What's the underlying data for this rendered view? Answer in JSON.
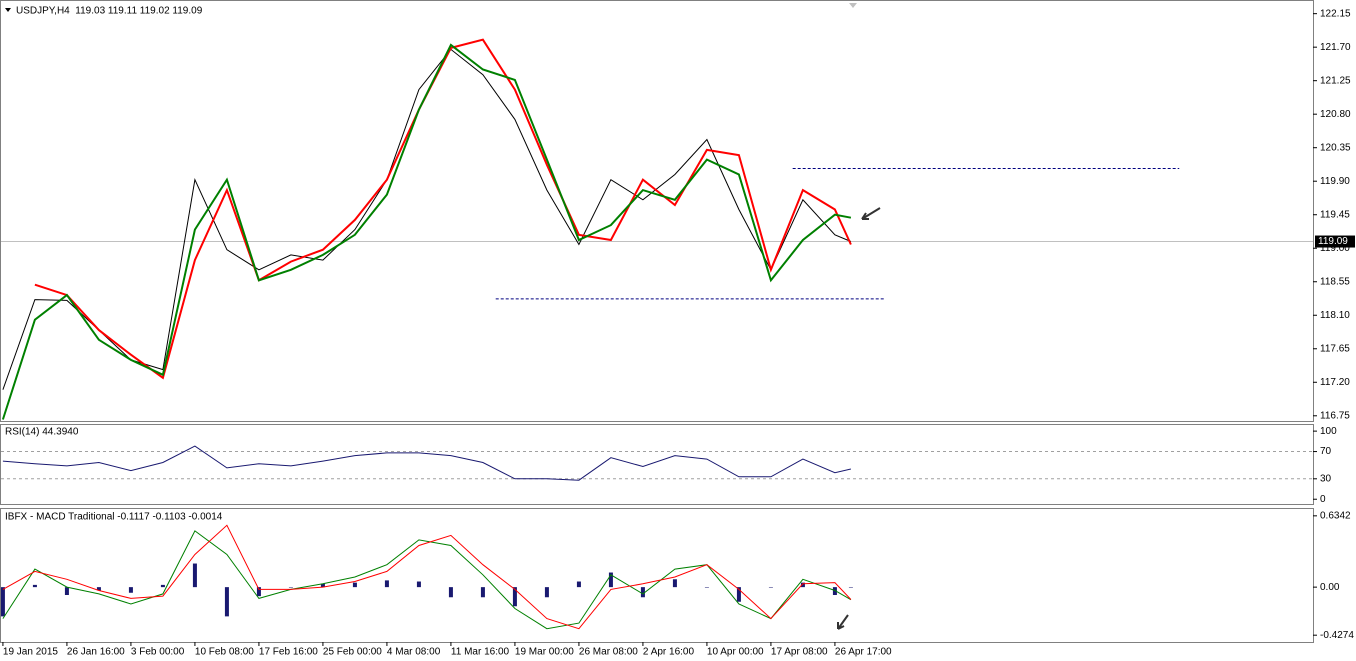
{
  "chart_data": [
    {
      "type": "line",
      "title": "USDJPY,H4  119.03 119.11 119.02 119.09",
      "x": [
        0,
        0.5,
        1,
        1.5,
        2,
        2.5,
        3,
        3.5,
        4,
        4.5,
        5,
        5.5,
        6,
        6.5,
        7,
        7.5,
        8,
        8.5,
        9,
        9.5,
        10,
        10.5,
        11,
        11.5,
        12,
        12.5,
        13,
        13.25
      ],
      "xlim": [
        -0.03,
        20.47
      ],
      "ylim": [
        116.68,
        122.32
      ],
      "yticks": [
        {
          "value": 122.15,
          "label": "122.15"
        },
        {
          "value": 121.7,
          "label": "121.70"
        },
        121.25,
        {
          "value": 120.8,
          "label": "120.80"
        },
        120.35,
        {
          "value": 119.9,
          "label": "119.90"
        },
        119.45,
        {
          "value": 119.0,
          "label": "119.00"
        },
        118.55,
        {
          "value": 118.1,
          "label": "118.10"
        },
        117.65,
        {
          "value": 117.2,
          "label": "117.20"
        },
        116.75
      ],
      "last_price": 119.09,
      "lines": [
        {
          "value": 120.07,
          "x": [
            12.34,
            18.38
          ]
        },
        {
          "value": 118.32,
          "x": [
            7.7,
            13.77
          ]
        }
      ],
      "series": [
        {
          "color": "#000000",
          "values": [
            117.1,
            118.31,
            118.3,
            117.9,
            117.5,
            117.37,
            119.92,
            118.98,
            118.71,
            118.91,
            118.84,
            119.25,
            119.92,
            121.13,
            121.67,
            121.33,
            120.73,
            119.78,
            119.05,
            119.92,
            119.65,
            119.99,
            120.46,
            119.52,
            118.71,
            119.65,
            119.18,
            119.09
          ]
        },
        {
          "color": "#ff0000",
          "values": [
            null,
            118.51,
            118.37,
            117.9,
            117.57,
            117.26,
            118.84,
            119.78,
            118.57,
            118.82,
            118.98,
            119.38,
            119.92,
            120.86,
            121.69,
            121.8,
            121.13,
            120.12,
            119.18,
            119.11,
            119.92,
            119.58,
            120.32,
            120.25,
            118.71,
            119.78,
            119.52,
            119.05
          ]
        },
        {
          "color": "#008000",
          "values": [
            116.7,
            118.04,
            118.37,
            117.77,
            117.5,
            117.3,
            119.25,
            119.92,
            118.57,
            118.71,
            118.91,
            119.18,
            119.72,
            120.86,
            121.73,
            121.4,
            121.26,
            120.19,
            119.11,
            119.31,
            119.78,
            119.65,
            120.19,
            119.99,
            118.57,
            119.11,
            119.45,
            119.41
          ]
        }
      ]
    },
    {
      "type": "line",
      "title": "RSI(14) 44.3940",
      "x": [
        0,
        0.5,
        1,
        1.5,
        2,
        2.5,
        3,
        3.5,
        4,
        4.5,
        5,
        5.5,
        6,
        6.5,
        7,
        7.5,
        8,
        8.5,
        9,
        9.5,
        10,
        10.5,
        11,
        11.5,
        12,
        12.5,
        13,
        13.25
      ],
      "xlim": [
        -0.03,
        20.47
      ],
      "ylim": [
        -7,
        109
      ],
      "yticks": [
        100,
        70,
        30,
        0
      ],
      "levels": [
        70,
        30
      ],
      "series": [
        {
          "color": "#191970",
          "values": [
            56,
            52,
            49,
            54,
            42,
            54,
            78,
            46,
            52,
            49,
            56,
            64,
            68,
            68,
            64,
            54,
            30,
            30,
            28,
            61,
            48,
            64,
            59,
            33,
            33,
            59,
            39,
            44.39
          ]
        }
      ]
    },
    {
      "type": "line",
      "title": "IBFX - MACD Traditional -0.1117 -0.1103 -0.0014",
      "x": [
        0,
        0.5,
        1,
        1.5,
        2,
        2.5,
        3,
        3.5,
        4,
        4.5,
        5,
        5.5,
        6,
        6.5,
        7,
        7.5,
        8,
        8.5,
        9,
        9.5,
        10,
        10.5,
        11,
        11.5,
        12,
        12.5,
        13,
        13.25
      ],
      "xlim": [
        -0.03,
        20.47
      ],
      "ylim": [
        -0.488,
        0.695
      ],
      "yticks": [
        0.6342,
        {
          "value": 0,
          "label": "0.00"
        },
        -0.4274
      ],
      "xticks": [
        {
          "value": 0,
          "label": "19 Jan 2015"
        },
        {
          "value": 1,
          "label": "26 Jan 16:00"
        },
        {
          "value": 2,
          "label": "3 Feb 00:00"
        },
        {
          "value": 3,
          "label": "10 Feb 08:00"
        },
        {
          "value": 4,
          "label": "17 Feb 16:00"
        },
        {
          "value": 5,
          "label": "25 Feb 00:00"
        },
        {
          "value": 6,
          "label": "4 Mar 08:00"
        },
        {
          "value": 7,
          "label": "11 Mar 16:00"
        },
        {
          "value": 8,
          "label": "19 Mar 00:00"
        },
        {
          "value": 9,
          "label": "26 Mar 08:00"
        },
        {
          "value": 10,
          "label": "2 Apr 16:00"
        },
        {
          "value": 11,
          "label": "10 Apr 00:00"
        },
        {
          "value": 12,
          "label": "17 Apr 08:00"
        },
        {
          "value": 13,
          "label": "26 Apr 17:00"
        }
      ],
      "series": [
        {
          "kind": "bar",
          "color": "#191970",
          "values": [
            -0.26,
            0.02,
            -0.07,
            -0.03,
            -0.05,
            0.02,
            0.21,
            -0.26,
            -0.08,
            0,
            0.03,
            0.04,
            0.06,
            0.05,
            -0.09,
            -0.09,
            -0.17,
            -0.09,
            0.05,
            0.13,
            -0.09,
            0.07,
            0,
            -0.13,
            0,
            0.04,
            -0.07,
            -0.0014
          ]
        },
        {
          "color": "#008000",
          "values": [
            -0.28,
            0.16,
            0,
            -0.06,
            -0.15,
            -0.06,
            0.5,
            0.29,
            -0.1,
            -0.02,
            0.03,
            0.09,
            0.2,
            0.42,
            0.37,
            0.11,
            -0.19,
            -0.37,
            -0.32,
            0.11,
            -0.06,
            0.16,
            0.2,
            -0.15,
            -0.28,
            0.07,
            -0.03,
            -0.1117
          ]
        },
        {
          "color": "#ff0000",
          "values": [
            -0.02,
            0.14,
            0.07,
            -0.03,
            -0.1,
            -0.08,
            0.29,
            0.55,
            -0.02,
            -0.02,
            0,
            0.05,
            0.14,
            0.37,
            0.46,
            0.2,
            -0.02,
            -0.28,
            -0.37,
            -0.02,
            0.03,
            0.09,
            0.2,
            -0.02,
            -0.28,
            0.03,
            0.04,
            -0.1103
          ]
        }
      ]
    }
  ]
}
